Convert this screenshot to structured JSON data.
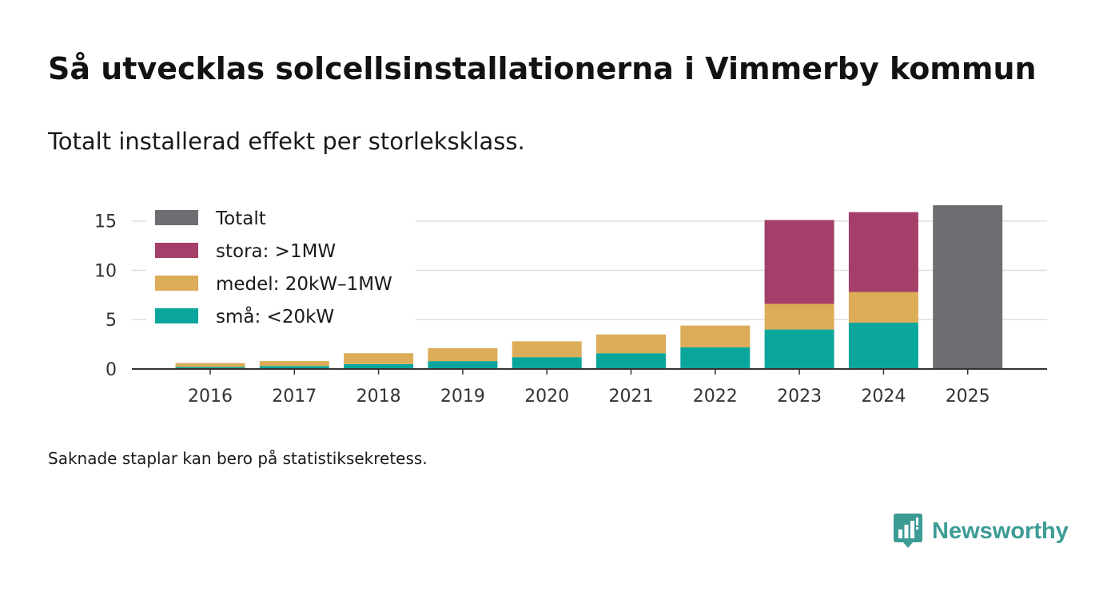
{
  "header": {
    "title": "Så utvecklas solcellsinstallationerna i Vimmerby kommun",
    "subtitle": "Totalt installerad effekt per storleksklass."
  },
  "footer": {
    "note": "Saknade staplar kan bero på statistiksekretess.",
    "brand": "Newsworthy"
  },
  "colors": {
    "total": "#6e6d72",
    "large": "#a33f68",
    "medium": "#dcac58",
    "small": "#0aa69c",
    "grid": "#dedede",
    "axis": "#333333",
    "brand": "#3c9c95"
  },
  "chart_data": {
    "type": "bar",
    "stacked": true,
    "title": "Så utvecklas solcellsinstallationerna i Vimmerby kommun",
    "subtitle": "Totalt installerad effekt per storleksklass.",
    "xlabel": "",
    "ylabel": "",
    "ylim": [
      0,
      17
    ],
    "yticks": [
      0,
      5,
      10,
      15
    ],
    "grid": true,
    "legend_position": "top-left",
    "categories": [
      "2016",
      "2017",
      "2018",
      "2019",
      "2020",
      "2021",
      "2022",
      "2023",
      "2024",
      "2025"
    ],
    "series": [
      {
        "key": "small",
        "name": "små: <20kW",
        "values": [
          0.2,
          0.3,
          0.5,
          0.8,
          1.2,
          1.6,
          2.2,
          4.0,
          4.7,
          null
        ]
      },
      {
        "key": "medium",
        "name": "medel: 20kW–1MW",
        "values": [
          0.4,
          0.5,
          1.1,
          1.3,
          1.6,
          1.9,
          2.2,
          2.6,
          3.1,
          null
        ]
      },
      {
        "key": "large",
        "name": "stora: >1MW",
        "values": [
          null,
          null,
          null,
          null,
          null,
          null,
          null,
          8.5,
          8.1,
          null
        ]
      },
      {
        "key": "total",
        "name": "Totalt",
        "values": [
          null,
          null,
          null,
          null,
          null,
          null,
          null,
          null,
          null,
          16.6
        ]
      }
    ],
    "legend_order": [
      "total",
      "large",
      "medium",
      "small"
    ]
  }
}
